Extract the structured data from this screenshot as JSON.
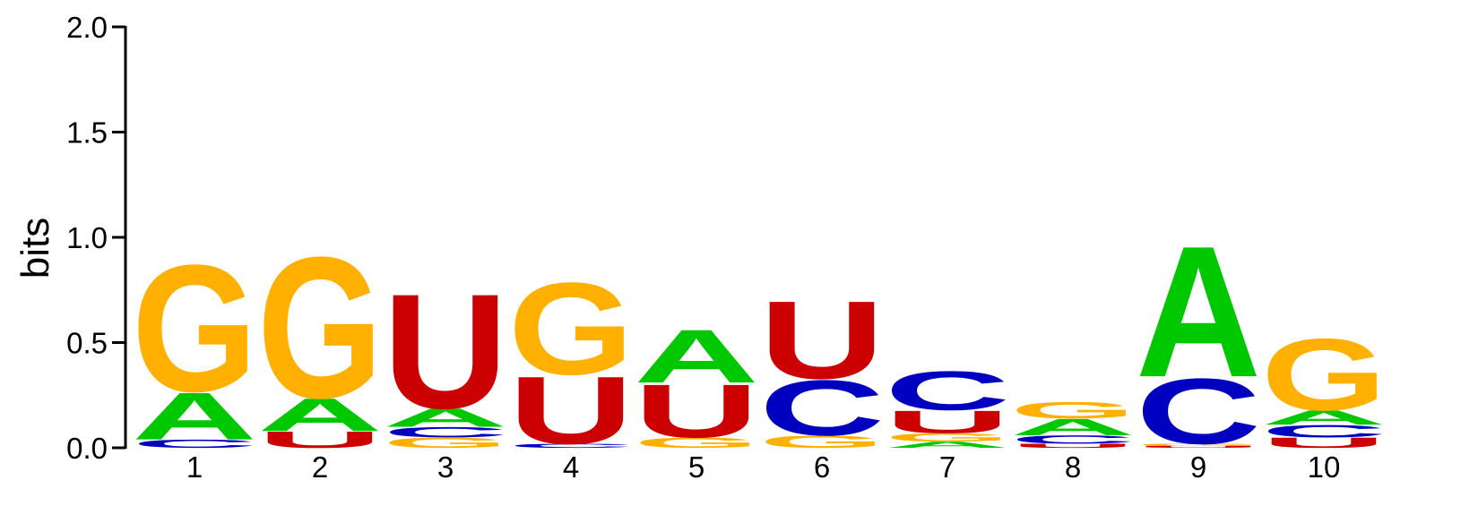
{
  "chart_data": {
    "type": "sequence-logo",
    "ylabel": "bits",
    "ylim": [
      0,
      2.0
    ],
    "yticks": [
      "0.0",
      "0.5",
      "1.0",
      "1.5",
      "2.0"
    ],
    "positions": [
      "1",
      "2",
      "3",
      "4",
      "5",
      "6",
      "7",
      "8",
      "9",
      "10"
    ],
    "colors": {
      "A": "#00c800",
      "C": "#0000c0",
      "G": "#ffb000",
      "U": "#cc0000"
    },
    "stacks": [
      [
        {
          "letter": "C",
          "value": 0.04
        },
        {
          "letter": "A",
          "value": 0.23
        },
        {
          "letter": "G",
          "value": 0.62
        }
      ],
      [
        {
          "letter": "U",
          "value": 0.08
        },
        {
          "letter": "A",
          "value": 0.16
        },
        {
          "letter": "G",
          "value": 0.69
        }
      ],
      [
        {
          "letter": "G",
          "value": 0.05
        },
        {
          "letter": "C",
          "value": 0.05
        },
        {
          "letter": "A",
          "value": 0.09
        },
        {
          "letter": "U",
          "value": 0.56
        }
      ],
      [
        {
          "letter": "C",
          "value": 0.02
        },
        {
          "letter": "U",
          "value": 0.33
        },
        {
          "letter": "G",
          "value": 0.45
        }
      ],
      [
        {
          "letter": "G",
          "value": 0.05
        },
        {
          "letter": "U",
          "value": 0.26
        },
        {
          "letter": "A",
          "value": 0.26
        }
      ],
      [
        {
          "letter": "G",
          "value": 0.06
        },
        {
          "letter": "C",
          "value": 0.27
        },
        {
          "letter": "U",
          "value": 0.38
        }
      ],
      [
        {
          "letter": "A",
          "value": 0.03
        },
        {
          "letter": "G",
          "value": 0.04
        },
        {
          "letter": "U",
          "value": 0.11
        },
        {
          "letter": "C",
          "value": 0.19
        }
      ],
      [
        {
          "letter": "U",
          "value": 0.02
        },
        {
          "letter": "C",
          "value": 0.04
        },
        {
          "letter": "A",
          "value": 0.08
        },
        {
          "letter": "G",
          "value": 0.08
        }
      ],
      [
        {
          "letter": "U",
          "value": 0.01
        },
        {
          "letter": "G",
          "value": 0.01
        },
        {
          "letter": "C",
          "value": 0.32
        },
        {
          "letter": "A",
          "value": 0.64
        }
      ],
      [
        {
          "letter": "U",
          "value": 0.05
        },
        {
          "letter": "C",
          "value": 0.06
        },
        {
          "letter": "A",
          "value": 0.07
        },
        {
          "letter": "G",
          "value": 0.35
        }
      ]
    ]
  }
}
